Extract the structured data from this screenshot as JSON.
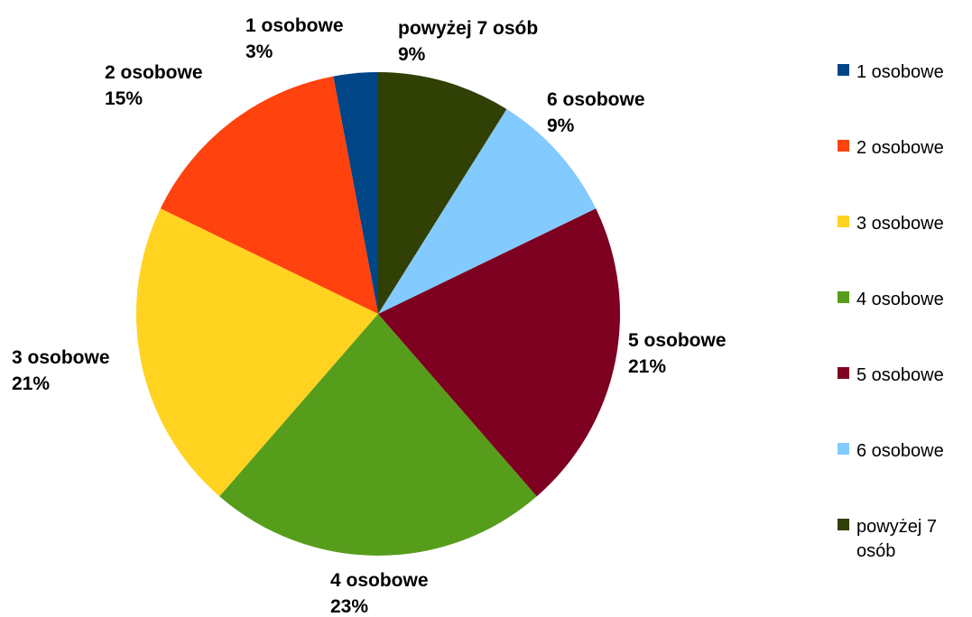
{
  "chart_data": {
    "type": "pie",
    "categories": [
      "1 osobowe",
      "2 osobowe",
      "3 osobowe",
      "4 osobowe",
      "5 osobowe",
      "6 osobowe",
      "powyżej 7 osób"
    ],
    "values": [
      3,
      15,
      21,
      23,
      21,
      9,
      9
    ],
    "data_labels": [
      [
        "1 osobowe",
        "3%"
      ],
      [
        "2 osobowe",
        "15%"
      ],
      [
        "3 osobowe",
        "21%"
      ],
      [
        "4 osobowe",
        "23%"
      ],
      [
        "5 osobowe",
        "21%"
      ],
      [
        "6 osobowe",
        "9%"
      ],
      [
        "powyżej 7 osób",
        "9%"
      ]
    ],
    "legend_labels": [
      [
        "1 osobowe"
      ],
      [
        "2 osobowe"
      ],
      [
        "3 osobowe"
      ],
      [
        "4 osobowe"
      ],
      [
        "5 osobowe"
      ],
      [
        "6 osobowe"
      ],
      [
        "powyżej 7",
        "osób"
      ]
    ],
    "colors": [
      "#004586",
      "#ff420e",
      "#ffd320",
      "#579d1c",
      "#7e0021",
      "#83caff",
      "#314004"
    ],
    "legend_position": "right",
    "slice_order": "clockwise-from-top"
  }
}
